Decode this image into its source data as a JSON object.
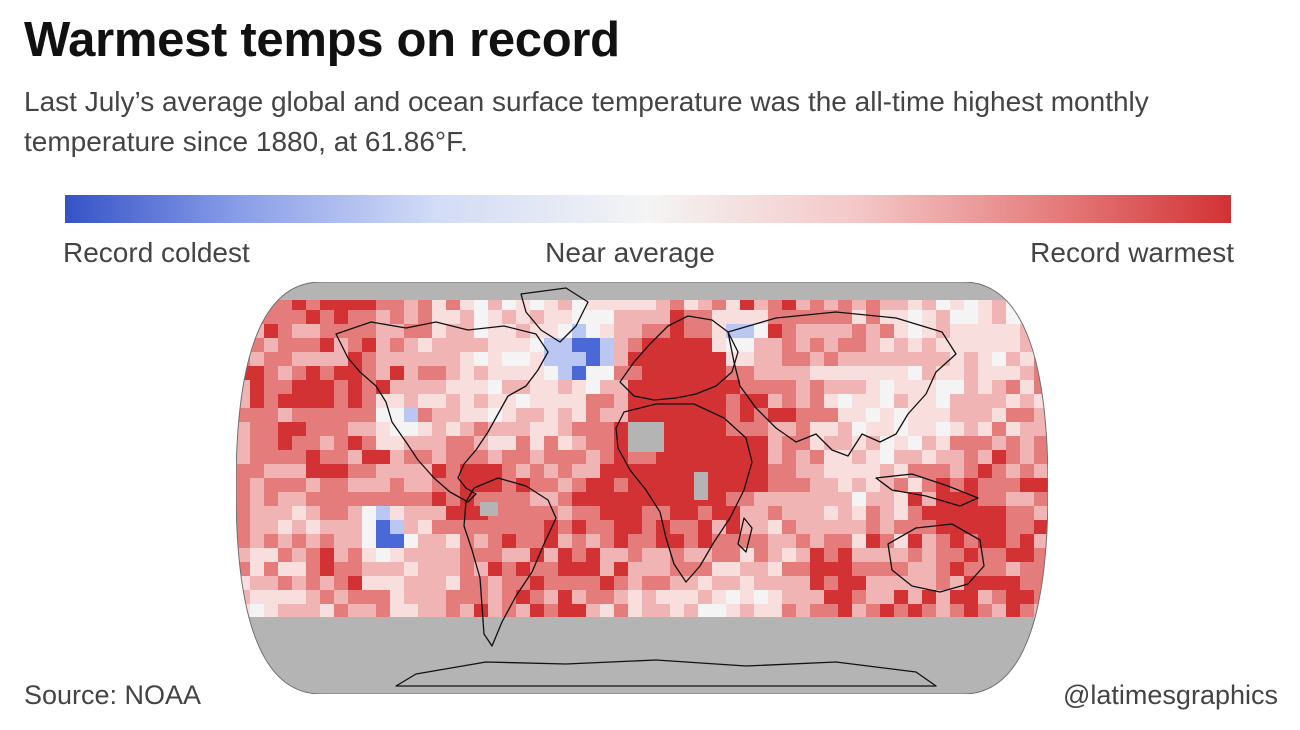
{
  "header": {
    "title": "Warmest temps on record",
    "subtitle": "Last July’s average global and ocean surface temperature was the all-time highest monthly temperature since 1880, at 61.86°F."
  },
  "legend": {
    "low_label": "Record coldest",
    "mid_label": "Near average",
    "high_label": "Record warmest",
    "colors": {
      "coldest": "#3553c6",
      "near_average": "#f4f4f4",
      "warmest": "#d23234",
      "no_data": "#b4b4b4"
    }
  },
  "map": {
    "projection": "Robinson",
    "content": "Global land and ocean surface temperature percentiles, July",
    "dominant_category": "warmer than average"
  },
  "footer": {
    "source": "Source: NOAA",
    "credit": "@latimesgraphics"
  }
}
